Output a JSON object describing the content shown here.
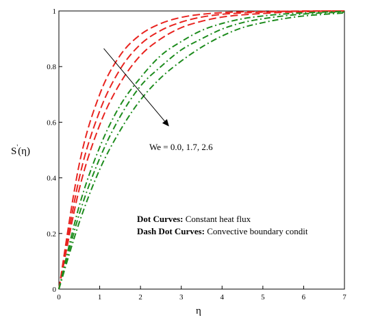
{
  "chart_data": {
    "type": "line",
    "xlabel": "η",
    "ylabel_main": "S",
    "ylabel_prime": "'",
    "ylabel_arg": "(η)",
    "xlim": [
      0,
      7
    ],
    "ylim": [
      0,
      1
    ],
    "xticks": [
      0,
      1,
      2,
      3,
      4,
      5,
      6,
      7
    ],
    "yticks": [
      0,
      0.2,
      0.4,
      0.6,
      0.8,
      1
    ],
    "grid": false,
    "series": [
      {
        "group": "constant-heat-flux",
        "color": "#e8231f",
        "style": "dash",
        "x": [
          0,
          0.5,
          1,
          1.5,
          2,
          2.5,
          3,
          3.5,
          4,
          4.5,
          5,
          5.5,
          6,
          6.5,
          7
        ],
        "values": [
          0,
          0.45,
          0.7,
          0.84,
          0.915,
          0.955,
          0.977,
          0.988,
          0.994,
          0.997,
          0.998,
          0.999,
          1,
          1,
          1
        ]
      },
      {
        "group": "constant-heat-flux",
        "color": "#e8231f",
        "style": "dash",
        "x": [
          0,
          0.5,
          1,
          1.5,
          2,
          2.5,
          3,
          3.5,
          4,
          4.5,
          5,
          5.5,
          6,
          6.5,
          7
        ],
        "values": [
          0,
          0.4,
          0.64,
          0.79,
          0.88,
          0.93,
          0.96,
          0.978,
          0.988,
          0.993,
          0.996,
          0.998,
          0.999,
          1,
          1
        ]
      },
      {
        "group": "constant-heat-flux",
        "color": "#e8231f",
        "style": "dash",
        "x": [
          0,
          0.5,
          1,
          1.5,
          2,
          2.5,
          3,
          3.5,
          4,
          4.5,
          5,
          5.5,
          6,
          6.5,
          7
        ],
        "values": [
          0,
          0.36,
          0.59,
          0.74,
          0.84,
          0.9,
          0.94,
          0.963,
          0.978,
          0.986,
          0.991,
          0.995,
          0.997,
          0.999,
          1
        ]
      },
      {
        "group": "convective-boundary",
        "color": "#1e8c1e",
        "style": "dashdot",
        "x": [
          0,
          0.5,
          1,
          1.5,
          2,
          2.5,
          3,
          3.5,
          4,
          4.5,
          5,
          5.5,
          6,
          6.5,
          7
        ],
        "values": [
          0,
          0.3,
          0.51,
          0.66,
          0.76,
          0.84,
          0.89,
          0.93,
          0.955,
          0.972,
          0.982,
          0.989,
          0.993,
          0.996,
          0.998
        ]
      },
      {
        "group": "convective-boundary",
        "color": "#1e8c1e",
        "style": "dashdot",
        "x": [
          0,
          0.5,
          1,
          1.5,
          2,
          2.5,
          3,
          3.5,
          4,
          4.5,
          5,
          5.5,
          6,
          6.5,
          7
        ],
        "values": [
          0,
          0.27,
          0.47,
          0.62,
          0.73,
          0.8,
          0.86,
          0.9,
          0.935,
          0.958,
          0.972,
          0.982,
          0.989,
          0.993,
          0.996
        ]
      },
      {
        "group": "convective-boundary",
        "color": "#1e8c1e",
        "style": "dashdot",
        "x": [
          0,
          0.5,
          1,
          1.5,
          2,
          2.5,
          3,
          3.5,
          4,
          4.5,
          5,
          5.5,
          6,
          6.5,
          7
        ],
        "values": [
          0,
          0.24,
          0.43,
          0.57,
          0.68,
          0.76,
          0.82,
          0.87,
          0.91,
          0.94,
          0.958,
          0.972,
          0.982,
          0.988,
          0.993
        ]
      }
    ],
    "arrow": {
      "from": [
        1.1,
        0.865
      ],
      "to": [
        2.7,
        0.585
      ]
    },
    "annotation": "We = 0.0, 1.7, 2.6",
    "legend": [
      {
        "bold": "Dot Curves:",
        "text": " Constant heat flux"
      },
      {
        "bold": "Dash Dot Curves:",
        "text": " Convective boundary condit"
      }
    ]
  }
}
